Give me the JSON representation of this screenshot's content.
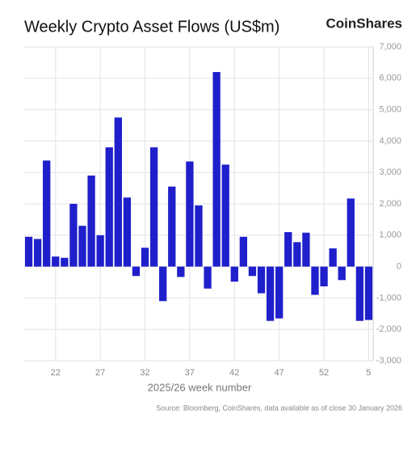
{
  "chart_data": {
    "type": "bar",
    "title": "Weekly Crypto Asset Flows (US$m)",
    "brand": "CoinShares",
    "x_label": "2025/26 week number",
    "source": "Source: Bloomberg, CoinShares, data available as of close 30 January 2026",
    "categories": [
      null,
      null,
      null,
      "22",
      null,
      null,
      null,
      null,
      "27",
      null,
      null,
      null,
      null,
      "32",
      null,
      null,
      null,
      null,
      "37",
      null,
      null,
      null,
      null,
      "42",
      null,
      null,
      null,
      null,
      "47",
      null,
      null,
      null,
      null,
      "52",
      null,
      null,
      null,
      null,
      "5"
    ],
    "values": [
      950,
      880,
      3380,
      320,
      280,
      2000,
      1300,
      2900,
      1000,
      3800,
      4750,
      2200,
      -300,
      600,
      3800,
      -1100,
      2550,
      -330,
      3350,
      1950,
      -700,
      6200,
      3250,
      -480,
      950,
      -300,
      -850,
      -1730,
      -1650,
      1100,
      780,
      1080,
      -900,
      -630,
      580,
      -430,
      2170,
      -1730,
      -1700
    ],
    "color": "#1f1fcc",
    "ylim": [
      -3000,
      7000
    ],
    "yticks": [
      {
        "value": -3000,
        "label": "-3,000"
      },
      {
        "value": -2000,
        "label": "-2,000"
      },
      {
        "value": -1000,
        "label": "-1,000"
      },
      0,
      {
        "value": 1000,
        "label": "1,000"
      },
      {
        "value": 2000,
        "label": "2,000"
      },
      {
        "value": 3000,
        "label": "3,000"
      },
      {
        "value": 4000,
        "label": "4,000"
      },
      {
        "value": 5000,
        "label": "5,000"
      },
      {
        "value": 6000,
        "label": "6,000"
      },
      {
        "value": 7000,
        "label": "7,000"
      }
    ],
    "grid": true
  }
}
